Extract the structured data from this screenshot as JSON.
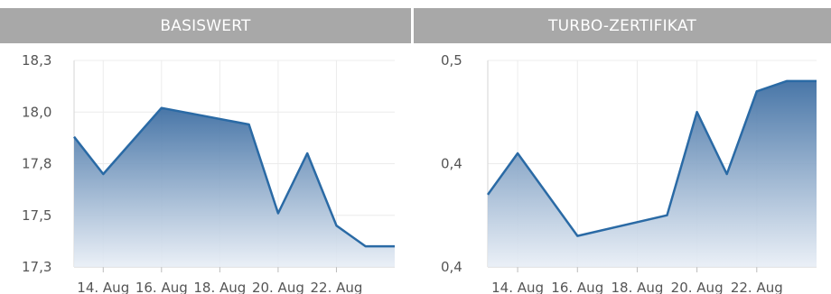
{
  "chart_data": [
    {
      "type": "area",
      "title": "BASISWERT",
      "x_ticks": [
        "14. Aug",
        "16. Aug",
        "18. Aug",
        "20. Aug",
        "22. Aug"
      ],
      "y_ticks": [
        "17,3",
        "17,5",
        "17,8",
        "18,0",
        "18,3"
      ],
      "ylim": [
        17.3,
        18.3
      ],
      "grid": true,
      "series": [
        {
          "x": [
            "13. Aug",
            "14. Aug",
            "16. Aug",
            "19. Aug",
            "20. Aug",
            "21. Aug",
            "22. Aug",
            "23. Aug",
            "24. Aug"
          ],
          "values": [
            17.93,
            17.75,
            18.07,
            17.99,
            17.56,
            17.85,
            17.5,
            17.4,
            17.4
          ]
        }
      ],
      "color": "#2a6aa5"
    },
    {
      "type": "area",
      "title": "TURBO-ZERTIFIKAT",
      "x_ticks": [
        "14. Aug",
        "16. Aug",
        "18. Aug",
        "20. Aug",
        "22. Aug"
      ],
      "y_ticks": [
        "0,4",
        "0,4",
        "0,5"
      ],
      "ylim": [
        0.38,
        0.48
      ],
      "grid": true,
      "series": [
        {
          "x": [
            "13. Aug",
            "14. Aug",
            "16. Aug",
            "19. Aug",
            "20. Aug",
            "21. Aug",
            "22. Aug",
            "23. Aug",
            "24. Aug"
          ],
          "values": [
            0.415,
            0.435,
            0.395,
            0.405,
            0.455,
            0.425,
            0.465,
            0.47,
            0.47
          ]
        }
      ],
      "color": "#2a6aa5"
    }
  ]
}
